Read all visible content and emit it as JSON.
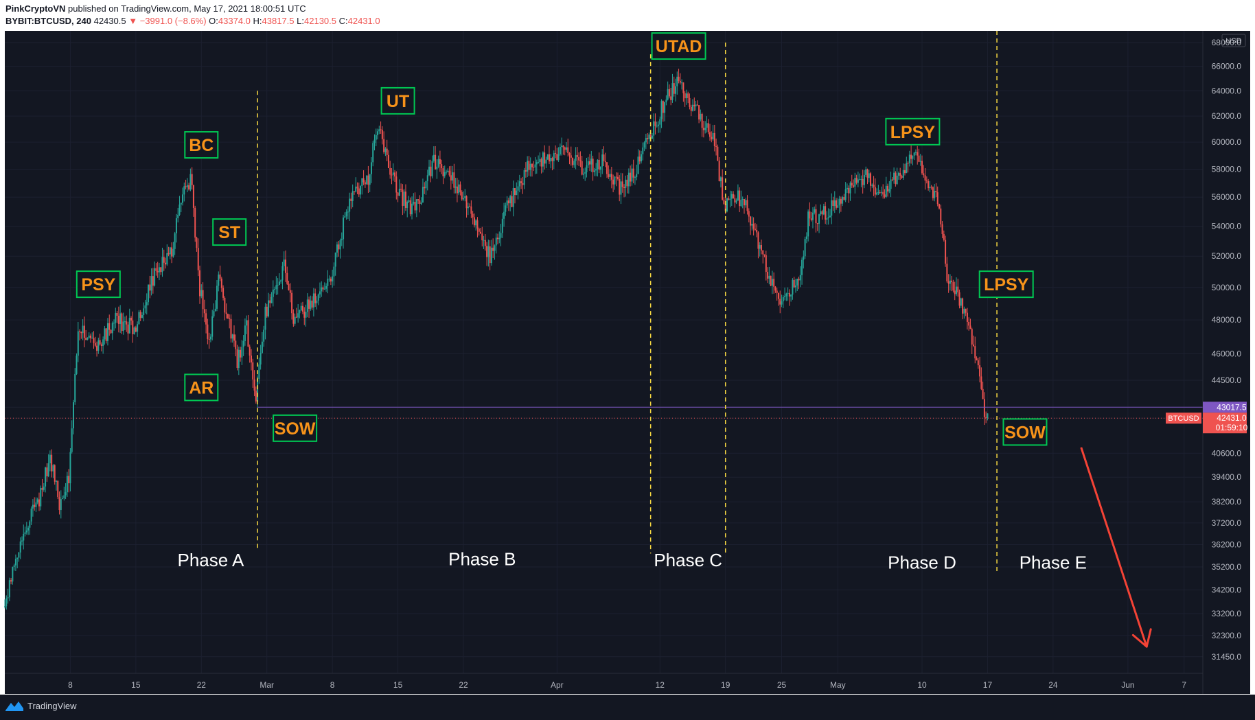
{
  "header": {
    "author": "PinkCryptoVN",
    "published": "published on TradingView.com, May 17, 2021 18:00:51 UTC",
    "symbol": "BYBIT:BTCUSD, 240",
    "last": "42430.5",
    "change": "▼ −3991.0 (−8.6%)",
    "o_label": "O:",
    "o_value": "43374.0",
    "h_label": "H:",
    "h_value": "43817.5",
    "l_label": "L:",
    "l_value": "42130.5",
    "c_label": "C:",
    "c_value": "42431.0"
  },
  "footer": {
    "brand": "TradingView",
    "brand_icon": "tradingview-logo-icon"
  },
  "colors": {
    "background": "#131722",
    "up": "#26a69a",
    "down": "#ef5350",
    "label_text": "#f7931a",
    "label_border": "#00c853",
    "phase_line": "#f5d742",
    "support_line": "#7e57c2",
    "arrow": "#f44336"
  },
  "chart_data": {
    "type": "candlestick",
    "currency": "USD",
    "axis_scale": "log",
    "ylim": [
      30800,
      69000
    ],
    "y_ticks": [
      68000.0,
      66000.0,
      64000.0,
      62000.0,
      60000.0,
      58000.0,
      56000.0,
      54000.0,
      52000.0,
      50000.0,
      48000.0,
      46000.0,
      44500.0,
      43017.5,
      42431.0,
      40600.0,
      39400.0,
      38200.0,
      37200.0,
      36200.0,
      35200.0,
      34200.0,
      33200.0,
      32300.0,
      31450.0
    ],
    "x_range": [
      "2021-02-01",
      "2021-06-09"
    ],
    "x_ticks": [
      {
        "label": "8",
        "date": "2021-02-08"
      },
      {
        "label": "15",
        "date": "2021-02-15"
      },
      {
        "label": "22",
        "date": "2021-02-22"
      },
      {
        "label": "Mar",
        "date": "2021-03-01"
      },
      {
        "label": "8",
        "date": "2021-03-08"
      },
      {
        "label": "15",
        "date": "2021-03-15"
      },
      {
        "label": "22",
        "date": "2021-03-22"
      },
      {
        "label": "Apr",
        "date": "2021-04-01"
      },
      {
        "label": "12",
        "date": "2021-04-12"
      },
      {
        "label": "19",
        "date": "2021-04-19"
      },
      {
        "label": "25",
        "date": "2021-04-25"
      },
      {
        "label": "May",
        "date": "2021-05-01"
      },
      {
        "label": "10",
        "date": "2021-05-10"
      },
      {
        "label": "17",
        "date": "2021-05-17"
      },
      {
        "label": "24",
        "date": "2021-05-24"
      },
      {
        "label": "Jun",
        "date": "2021-06-01"
      },
      {
        "label": "7",
        "date": "2021-06-07"
      }
    ],
    "price_path": [
      [
        "2021-02-01",
        33500
      ],
      [
        "2021-02-03",
        36500
      ],
      [
        "2021-02-05",
        38500
      ],
      [
        "2021-02-06",
        40500
      ],
      [
        "2021-02-07",
        38000
      ],
      [
        "2021-02-08",
        39500
      ],
      [
        "2021-02-09",
        47500
      ],
      [
        "2021-02-11",
        46500
      ],
      [
        "2021-02-13",
        48000
      ],
      [
        "2021-02-15",
        47500
      ],
      [
        "2021-02-17",
        50500
      ],
      [
        "2021-02-19",
        52500
      ],
      [
        "2021-02-20",
        55500
      ],
      [
        "2021-02-21",
        57500
      ],
      [
        "2021-02-22",
        50000
      ],
      [
        "2021-02-23",
        46500
      ],
      [
        "2021-02-24",
        50500
      ],
      [
        "2021-02-26",
        45500
      ],
      [
        "2021-02-27",
        47500
      ],
      [
        "2021-02-28",
        43500
      ],
      [
        "2021-03-01",
        48500
      ],
      [
        "2021-03-03",
        51500
      ],
      [
        "2021-03-04",
        48000
      ],
      [
        "2021-03-06",
        49000
      ],
      [
        "2021-03-08",
        50500
      ],
      [
        "2021-03-10",
        56000
      ],
      [
        "2021-03-12",
        57500
      ],
      [
        "2021-03-13",
        61500
      ],
      [
        "2021-03-15",
        56500
      ],
      [
        "2021-03-17",
        55000
      ],
      [
        "2021-03-19",
        58500
      ],
      [
        "2021-03-21",
        57500
      ],
      [
        "2021-03-23",
        54500
      ],
      [
        "2021-03-25",
        52000
      ],
      [
        "2021-03-27",
        55500
      ],
      [
        "2021-03-29",
        58000
      ],
      [
        "2021-03-31",
        59000
      ],
      [
        "2021-04-02",
        59500
      ],
      [
        "2021-04-04",
        58000
      ],
      [
        "2021-04-06",
        58500
      ],
      [
        "2021-04-08",
        56500
      ],
      [
        "2021-04-10",
        58500
      ],
      [
        "2021-04-11",
        60500
      ],
      [
        "2021-04-13",
        63500
      ],
      [
        "2021-04-14",
        64500
      ],
      [
        "2021-04-16",
        62500
      ],
      [
        "2021-04-18",
        60000
      ],
      [
        "2021-04-19",
        55500
      ],
      [
        "2021-04-21",
        56000
      ],
      [
        "2021-04-23",
        52000
      ],
      [
        "2021-04-25",
        49000
      ],
      [
        "2021-04-27",
        50500
      ],
      [
        "2021-04-28",
        54500
      ],
      [
        "2021-04-30",
        55000
      ],
      [
        "2021-05-02",
        56500
      ],
      [
        "2021-05-04",
        57500
      ],
      [
        "2021-05-06",
        56000
      ],
      [
        "2021-05-08",
        58000
      ],
      [
        "2021-05-09",
        59000
      ],
      [
        "2021-05-10",
        58500
      ],
      [
        "2021-05-11",
        56500
      ],
      [
        "2021-05-12",
        55500
      ],
      [
        "2021-05-13",
        50000
      ],
      [
        "2021-05-14",
        49500
      ],
      [
        "2021-05-15",
        48000
      ],
      [
        "2021-05-16",
        45500
      ],
      [
        "2021-05-17",
        42431
      ]
    ],
    "price_line": {
      "value": 43017.5,
      "label": "43017.5",
      "from": "2021-02-28"
    },
    "last_price": {
      "value": 42431.0,
      "label": "42431.0",
      "symbol": "BTCUSD",
      "countdown": "01:59:10"
    },
    "phase_lines": [
      {
        "date": "2021-02-28",
        "top": 64000,
        "bottom": 36000
      },
      {
        "date": "2021-04-11",
        "top": 67000,
        "bottom": 35800
      },
      {
        "date": "2021-04-19",
        "top": 68000,
        "bottom": 35800
      },
      {
        "date": "2021-05-18",
        "top": 69000,
        "bottom": 35000
      }
    ],
    "annotations": [
      {
        "text": "PSY",
        "date": "2021-02-11",
        "price": 50200
      },
      {
        "text": "BC",
        "date": "2021-02-22",
        "price": 59800
      },
      {
        "text": "ST",
        "date": "2021-02-25",
        "price": 53600
      },
      {
        "text": "AR",
        "date": "2021-02-22",
        "price": 44100
      },
      {
        "text": "SOW",
        "date": "2021-03-04",
        "price": 41900
      },
      {
        "text": "UT",
        "date": "2021-03-15",
        "price": 63200
      },
      {
        "text": "UTAD",
        "date": "2021-04-14",
        "price": 67700
      },
      {
        "text": "LPSY",
        "date": "2021-05-09",
        "price": 60800
      },
      {
        "text": "LPSY",
        "date": "2021-05-19",
        "price": 50200
      },
      {
        "text": "SOW",
        "date": "2021-05-21",
        "price": 41700
      }
    ],
    "phase_labels": [
      {
        "text": "Phase A",
        "date": "2021-02-23",
        "price": 35500
      },
      {
        "text": "Phase B",
        "date": "2021-03-24",
        "price": 35550
      },
      {
        "text": "Phase C",
        "date": "2021-04-15",
        "price": 35500
      },
      {
        "text": "Phase D",
        "date": "2021-05-10",
        "price": 35400
      },
      {
        "text": "Phase E",
        "date": "2021-05-24",
        "price": 35400
      }
    ],
    "arrow": {
      "from": {
        "date": "2021-05-27",
        "price": 40900
      },
      "to": {
        "date": "2021-06-03",
        "price": 31850
      }
    }
  }
}
